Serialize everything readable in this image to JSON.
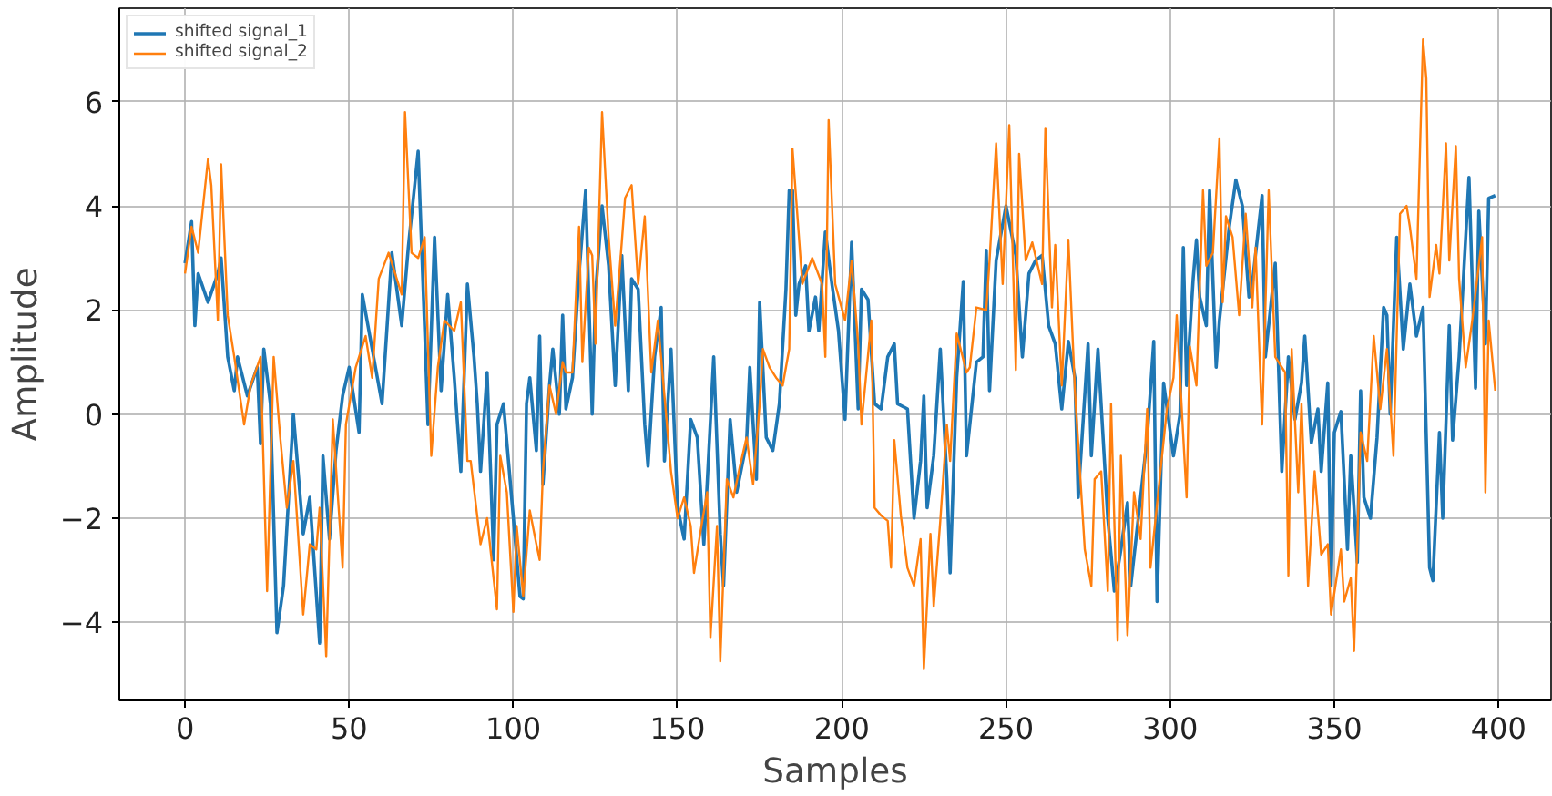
{
  "chart_data": {
    "type": "line",
    "xlabel": "Samples",
    "ylabel": "Amplitude",
    "xlim": [
      -20,
      416
    ],
    "ylim": [
      -5.5,
      7.8
    ],
    "xticks": [
      0,
      50,
      100,
      150,
      200,
      250,
      300,
      350,
      400
    ],
    "yticks": [
      -4,
      -2,
      0,
      2,
      4,
      6
    ],
    "grid": true,
    "legend": "top left",
    "line_style": "solid",
    "marker": "none",
    "series": [
      {
        "name": "shifted signal_1",
        "color": "#1f77b4",
        "x": [
          0,
          2,
          3,
          4,
          7,
          10,
          11,
          13,
          15,
          16,
          19,
          22,
          23,
          24,
          26,
          28,
          30,
          33,
          36,
          38,
          41,
          42,
          44,
          46,
          48,
          50,
          53,
          54,
          57,
          60,
          63,
          66,
          68,
          71,
          73,
          74,
          76,
          78,
          80,
          82,
          84,
          86,
          88,
          89,
          90,
          92,
          94,
          95,
          97,
          100,
          102,
          103,
          104,
          105,
          107,
          108,
          109,
          111,
          112,
          114,
          115,
          116,
          118,
          120,
          122,
          124,
          125,
          127,
          129,
          131,
          133,
          135,
          136,
          138,
          140,
          141,
          143,
          145,
          146,
          148,
          150,
          152,
          154,
          156,
          158,
          159,
          161,
          163,
          164,
          166,
          168,
          171,
          172,
          174,
          175,
          177,
          179,
          181,
          183,
          184,
          185,
          186,
          187,
          189,
          190,
          192,
          193,
          195,
          197,
          199,
          201,
          203,
          205,
          206,
          208,
          210,
          212,
          214,
          216,
          217,
          220,
          222,
          224,
          225,
          226,
          228,
          230,
          232,
          233,
          235,
          237,
          238,
          241,
          243,
          244,
          245,
          247,
          250,
          253,
          255,
          257,
          259,
          261,
          263,
          265,
          267,
          269,
          271,
          272,
          275,
          276,
          278,
          281,
          283,
          285,
          287,
          288,
          291,
          293,
          295,
          296,
          298,
          301,
          303,
          304,
          305,
          307,
          308,
          309,
          311,
          312,
          314,
          315,
          318,
          320,
          322,
          324,
          325,
          328,
          329,
          332,
          334,
          336,
          338,
          340,
          341,
          343,
          345,
          346,
          348,
          349,
          350,
          352,
          354,
          355,
          357,
          358,
          359,
          361,
          363,
          365,
          366,
          367,
          369,
          371,
          373,
          375,
          377,
          379,
          380,
          382,
          383,
          385,
          386,
          388,
          391,
          393,
          394,
          396,
          397,
          399
        ],
        "values": [
          2.9,
          3.7,
          1.7,
          2.7,
          2.15,
          2.7,
          3.0,
          1.1,
          0.45,
          1.1,
          0.35,
          0.9,
          -0.57,
          1.25,
          0.2,
          -4.2,
          -3.3,
          0,
          -2.3,
          -1.6,
          -4.4,
          -0.8,
          -2.4,
          -0.7,
          0.35,
          0.9,
          -0.35,
          2.3,
          1.25,
          0.2,
          3.1,
          1.7,
          3.2,
          5.05,
          1.6,
          -0.2,
          3.4,
          0.45,
          2.3,
          0.7,
          -1.1,
          2.5,
          1.1,
          0.2,
          -1.1,
          0.8,
          -2.8,
          -0.2,
          0.2,
          -2.0,
          -3.5,
          -3.55,
          0.2,
          0.7,
          -0.7,
          1.5,
          -1.35,
          0.55,
          1.25,
          0,
          1.9,
          0.1,
          0.7,
          2.7,
          4.3,
          0,
          2.3,
          4.0,
          2.85,
          0.55,
          3.05,
          0.45,
          2.6,
          2.4,
          -0.2,
          -1.0,
          1.1,
          2.05,
          -0.9,
          1.25,
          -1.8,
          -2.4,
          -0.1,
          -0.45,
          -2.5,
          -1.35,
          1.1,
          -2.3,
          -3.3,
          -0.1,
          -1.5,
          -0.55,
          0.9,
          -1.25,
          2.15,
          -0.45,
          -0.7,
          0.2,
          2.4,
          4.3,
          4.3,
          1.9,
          2.5,
          2.85,
          1.6,
          2.25,
          1.6,
          3.5,
          2.5,
          1.6,
          -0.1,
          3.3,
          0.1,
          2.4,
          2.2,
          0.2,
          0.1,
          1.1,
          1.35,
          0.2,
          0.1,
          -2.0,
          -0.9,
          0.35,
          -1.8,
          -0.8,
          1.25,
          -1.25,
          -3.05,
          0.7,
          2.55,
          -0.8,
          1.0,
          1.1,
          3.15,
          0.45,
          2.95,
          4.0,
          3.05,
          1.1,
          2.7,
          2.95,
          3.05,
          1.7,
          1.35,
          0.1,
          1.4,
          0.7,
          -1.6,
          1.35,
          -0.8,
          1.25,
          -2.0,
          -3.4,
          -2.6,
          -1.7,
          -3.3,
          -1.6,
          -0.45,
          1.4,
          -3.6,
          0.6,
          -0.8,
          0,
          3.2,
          0.55,
          2.6,
          3.35,
          2.25,
          1.7,
          4.3,
          0.9,
          1.8,
          3.6,
          4.5,
          4.0,
          2.25,
          2.5,
          4.2,
          1.1,
          2.9,
          -1.1,
          1.1,
          -0.1,
          0.6,
          1.5,
          -0.55,
          0.1,
          -1.1,
          0.6,
          -3.3,
          -0.35,
          0.05,
          -2.6,
          -0.8,
          -2.85,
          0.45,
          -1.6,
          -2.0,
          -0.45,
          2.05,
          1.9,
          0,
          3.4,
          1.25,
          2.5,
          1.5,
          2.05,
          -2.95,
          -3.2,
          -0.35,
          -2.0,
          1.7,
          -0.5,
          1.1,
          4.55,
          0.5,
          3.9,
          1.35,
          4.15,
          4.2
        ]
      },
      {
        "name": "shifted signal_2",
        "color": "#ff7f0e",
        "x": [
          0,
          2,
          4,
          7,
          8,
          10,
          11,
          13,
          15,
          18,
          20,
          23,
          25,
          27,
          29,
          31,
          33,
          36,
          38,
          40,
          41,
          43,
          45,
          48,
          49,
          52,
          53,
          55,
          57,
          59,
          62,
          66,
          67,
          69,
          71,
          73,
          75,
          77,
          79,
          82,
          84,
          86,
          87,
          90,
          92,
          95,
          96,
          98,
          100,
          101,
          103,
          105,
          107,
          108,
          109,
          111,
          113,
          115,
          116,
          118,
          120,
          121,
          123,
          124,
          125,
          127,
          129,
          131,
          133,
          134,
          136,
          138,
          140,
          142,
          144,
          146,
          148,
          150,
          152,
          154,
          155,
          157,
          159,
          160,
          162,
          163,
          165,
          167,
          169,
          171,
          173,
          175,
          176,
          178,
          180,
          182,
          184,
          185,
          188,
          191,
          194,
          195,
          196,
          198,
          201,
          203,
          205,
          206,
          209,
          210,
          212,
          214,
          215,
          216,
          218,
          220,
          222,
          224,
          225,
          227,
          228,
          230,
          232,
          233,
          235,
          238,
          239,
          241,
          244,
          245,
          247,
          249,
          251,
          253,
          254,
          256,
          258,
          261,
          262,
          264,
          265,
          267,
          269,
          271,
          274,
          276,
          277,
          279,
          281,
          282,
          284,
          285,
          287,
          289,
          291,
          293,
          294,
          299,
          301,
          302,
          304,
          305,
          306,
          308,
          310,
          311,
          313,
          315,
          316,
          317,
          319,
          321,
          323,
          325,
          326,
          328,
          330,
          332,
          335,
          336,
          337,
          339,
          340,
          342,
          344,
          346,
          348,
          349,
          352,
          353,
          355,
          356,
          358,
          360,
          362,
          364,
          366,
          368,
          370,
          372,
          373,
          375,
          377,
          378,
          379,
          381,
          382,
          384,
          385,
          387,
          388,
          390,
          392,
          395,
          396,
          397,
          399
        ],
        "values": [
          2.7,
          3.6,
          3.1,
          4.9,
          4.4,
          1.8,
          4.8,
          1.9,
          1.1,
          -0.2,
          0.55,
          1.1,
          -3.4,
          1.1,
          -0.45,
          -1.8,
          -0.9,
          -3.85,
          -2.5,
          -2.6,
          -1.8,
          -4.65,
          -0.1,
          -2.95,
          -0.2,
          0.9,
          1.1,
          1.5,
          0.7,
          2.6,
          3.1,
          2.3,
          5.8,
          3.1,
          3.0,
          3.4,
          -0.8,
          0.9,
          1.8,
          1.6,
          2.15,
          -0.9,
          -0.9,
          -2.5,
          -2.0,
          -3.75,
          -0.8,
          -1.5,
          -3.8,
          -2.15,
          -3.5,
          -1.85,
          -2.5,
          -2.8,
          -1.1,
          0.55,
          0,
          1.0,
          0.8,
          0.8,
          3.6,
          1.0,
          3.2,
          3.05,
          1.35,
          5.8,
          3.4,
          1.7,
          3.3,
          4.15,
          4.4,
          2.5,
          3.8,
          0.8,
          1.8,
          0.35,
          -1.1,
          -2.0,
          -1.6,
          -2.15,
          -3.05,
          -2.25,
          -1.5,
          -4.3,
          -2.15,
          -4.75,
          -1.25,
          -1.6,
          -1.0,
          -0.45,
          -1.35,
          0.2,
          1.25,
          0.9,
          0.7,
          0.55,
          1.25,
          5.1,
          2.5,
          3.0,
          2.5,
          1.1,
          5.65,
          2.5,
          1.8,
          2.95,
          1.35,
          -0.2,
          1.8,
          -1.8,
          -1.95,
          -2.05,
          -2.95,
          -0.5,
          -1.95,
          -2.95,
          -3.3,
          -2.4,
          -4.9,
          -2.3,
          -3.7,
          -2.05,
          -0.2,
          -0.9,
          1.55,
          0.8,
          0.9,
          2.05,
          2.0,
          2.95,
          5.2,
          2.5,
          5.55,
          0.85,
          5.0,
          2.95,
          3.3,
          2.5,
          5.5,
          2.05,
          3.25,
          0.55,
          3.35,
          0.45,
          -2.6,
          -3.3,
          -1.25,
          -1.1,
          -3.4,
          0.2,
          -4.35,
          -0.8,
          -4.25,
          -1.5,
          -2.4,
          0.1,
          -2.95,
          0.1,
          0.7,
          1.9,
          -0.45,
          -1.6,
          1.3,
          0.55,
          4.3,
          2.85,
          3.1,
          5.3,
          2.15,
          3.8,
          3.4,
          1.9,
          3.85,
          2.05,
          3.2,
          -0.2,
          4.3,
          1.1,
          0.8,
          -3.1,
          1.25,
          -1.5,
          0.2,
          -3.3,
          -1.1,
          -2.7,
          -2.5,
          -3.85,
          -2.6,
          -3.6,
          -3.15,
          -4.55,
          -0.35,
          -0.9,
          1.5,
          0.1,
          1.25,
          -0.8,
          3.85,
          4.0,
          3.6,
          2.6,
          7.2,
          6.45,
          2.25,
          3.25,
          2.7,
          5.2,
          2.95,
          5.15,
          2.6,
          0.9,
          1.8,
          3.4,
          -1.5,
          1.8,
          0.45
        ]
      }
    ]
  }
}
